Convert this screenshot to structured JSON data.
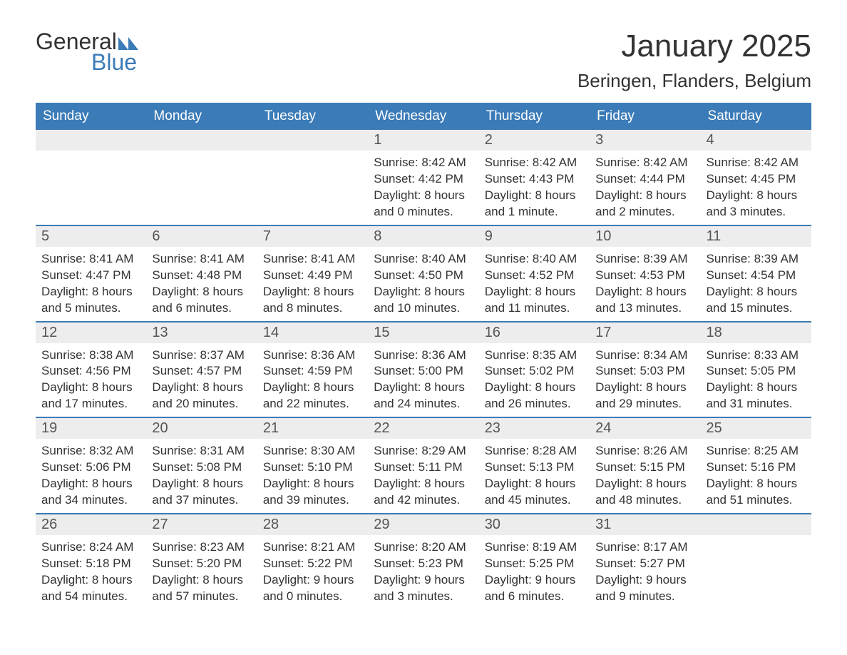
{
  "logo": {
    "general_text": "General",
    "blue_text": "Blue",
    "general_color": "#333333",
    "blue_color": "#3b7bb8",
    "triangle_color": "#3b7bb8"
  },
  "title": {
    "month_year": "January 2025",
    "location": "Beringen, Flanders, Belgium"
  },
  "styling": {
    "header_bg": "#3b7bb8",
    "header_text_color": "#ffffff",
    "day_number_bg": "#ededed",
    "day_number_color": "#555555",
    "border_color": "#3b7bb8",
    "content_color": "#333333",
    "background_color": "#ffffff",
    "body_fontsize": 17,
    "header_fontsize": 19,
    "title_fontsize": 44,
    "location_fontsize": 26
  },
  "day_headers": [
    "Sunday",
    "Monday",
    "Tuesday",
    "Wednesday",
    "Thursday",
    "Friday",
    "Saturday"
  ],
  "weeks": [
    [
      {
        "empty": true
      },
      {
        "empty": true
      },
      {
        "empty": true
      },
      {
        "day": "1",
        "sunrise": "Sunrise: 8:42 AM",
        "sunset": "Sunset: 4:42 PM",
        "daylight1": "Daylight: 8 hours",
        "daylight2": "and 0 minutes."
      },
      {
        "day": "2",
        "sunrise": "Sunrise: 8:42 AM",
        "sunset": "Sunset: 4:43 PM",
        "daylight1": "Daylight: 8 hours",
        "daylight2": "and 1 minute."
      },
      {
        "day": "3",
        "sunrise": "Sunrise: 8:42 AM",
        "sunset": "Sunset: 4:44 PM",
        "daylight1": "Daylight: 8 hours",
        "daylight2": "and 2 minutes."
      },
      {
        "day": "4",
        "sunrise": "Sunrise: 8:42 AM",
        "sunset": "Sunset: 4:45 PM",
        "daylight1": "Daylight: 8 hours",
        "daylight2": "and 3 minutes."
      }
    ],
    [
      {
        "day": "5",
        "sunrise": "Sunrise: 8:41 AM",
        "sunset": "Sunset: 4:47 PM",
        "daylight1": "Daylight: 8 hours",
        "daylight2": "and 5 minutes."
      },
      {
        "day": "6",
        "sunrise": "Sunrise: 8:41 AM",
        "sunset": "Sunset: 4:48 PM",
        "daylight1": "Daylight: 8 hours",
        "daylight2": "and 6 minutes."
      },
      {
        "day": "7",
        "sunrise": "Sunrise: 8:41 AM",
        "sunset": "Sunset: 4:49 PM",
        "daylight1": "Daylight: 8 hours",
        "daylight2": "and 8 minutes."
      },
      {
        "day": "8",
        "sunrise": "Sunrise: 8:40 AM",
        "sunset": "Sunset: 4:50 PM",
        "daylight1": "Daylight: 8 hours",
        "daylight2": "and 10 minutes."
      },
      {
        "day": "9",
        "sunrise": "Sunrise: 8:40 AM",
        "sunset": "Sunset: 4:52 PM",
        "daylight1": "Daylight: 8 hours",
        "daylight2": "and 11 minutes."
      },
      {
        "day": "10",
        "sunrise": "Sunrise: 8:39 AM",
        "sunset": "Sunset: 4:53 PM",
        "daylight1": "Daylight: 8 hours",
        "daylight2": "and 13 minutes."
      },
      {
        "day": "11",
        "sunrise": "Sunrise: 8:39 AM",
        "sunset": "Sunset: 4:54 PM",
        "daylight1": "Daylight: 8 hours",
        "daylight2": "and 15 minutes."
      }
    ],
    [
      {
        "day": "12",
        "sunrise": "Sunrise: 8:38 AM",
        "sunset": "Sunset: 4:56 PM",
        "daylight1": "Daylight: 8 hours",
        "daylight2": "and 17 minutes."
      },
      {
        "day": "13",
        "sunrise": "Sunrise: 8:37 AM",
        "sunset": "Sunset: 4:57 PM",
        "daylight1": "Daylight: 8 hours",
        "daylight2": "and 20 minutes."
      },
      {
        "day": "14",
        "sunrise": "Sunrise: 8:36 AM",
        "sunset": "Sunset: 4:59 PM",
        "daylight1": "Daylight: 8 hours",
        "daylight2": "and 22 minutes."
      },
      {
        "day": "15",
        "sunrise": "Sunrise: 8:36 AM",
        "sunset": "Sunset: 5:00 PM",
        "daylight1": "Daylight: 8 hours",
        "daylight2": "and 24 minutes."
      },
      {
        "day": "16",
        "sunrise": "Sunrise: 8:35 AM",
        "sunset": "Sunset: 5:02 PM",
        "daylight1": "Daylight: 8 hours",
        "daylight2": "and 26 minutes."
      },
      {
        "day": "17",
        "sunrise": "Sunrise: 8:34 AM",
        "sunset": "Sunset: 5:03 PM",
        "daylight1": "Daylight: 8 hours",
        "daylight2": "and 29 minutes."
      },
      {
        "day": "18",
        "sunrise": "Sunrise: 8:33 AM",
        "sunset": "Sunset: 5:05 PM",
        "daylight1": "Daylight: 8 hours",
        "daylight2": "and 31 minutes."
      }
    ],
    [
      {
        "day": "19",
        "sunrise": "Sunrise: 8:32 AM",
        "sunset": "Sunset: 5:06 PM",
        "daylight1": "Daylight: 8 hours",
        "daylight2": "and 34 minutes."
      },
      {
        "day": "20",
        "sunrise": "Sunrise: 8:31 AM",
        "sunset": "Sunset: 5:08 PM",
        "daylight1": "Daylight: 8 hours",
        "daylight2": "and 37 minutes."
      },
      {
        "day": "21",
        "sunrise": "Sunrise: 8:30 AM",
        "sunset": "Sunset: 5:10 PM",
        "daylight1": "Daylight: 8 hours",
        "daylight2": "and 39 minutes."
      },
      {
        "day": "22",
        "sunrise": "Sunrise: 8:29 AM",
        "sunset": "Sunset: 5:11 PM",
        "daylight1": "Daylight: 8 hours",
        "daylight2": "and 42 minutes."
      },
      {
        "day": "23",
        "sunrise": "Sunrise: 8:28 AM",
        "sunset": "Sunset: 5:13 PM",
        "daylight1": "Daylight: 8 hours",
        "daylight2": "and 45 minutes."
      },
      {
        "day": "24",
        "sunrise": "Sunrise: 8:26 AM",
        "sunset": "Sunset: 5:15 PM",
        "daylight1": "Daylight: 8 hours",
        "daylight2": "and 48 minutes."
      },
      {
        "day": "25",
        "sunrise": "Sunrise: 8:25 AM",
        "sunset": "Sunset: 5:16 PM",
        "daylight1": "Daylight: 8 hours",
        "daylight2": "and 51 minutes."
      }
    ],
    [
      {
        "day": "26",
        "sunrise": "Sunrise: 8:24 AM",
        "sunset": "Sunset: 5:18 PM",
        "daylight1": "Daylight: 8 hours",
        "daylight2": "and 54 minutes."
      },
      {
        "day": "27",
        "sunrise": "Sunrise: 8:23 AM",
        "sunset": "Sunset: 5:20 PM",
        "daylight1": "Daylight: 8 hours",
        "daylight2": "and 57 minutes."
      },
      {
        "day": "28",
        "sunrise": "Sunrise: 8:21 AM",
        "sunset": "Sunset: 5:22 PM",
        "daylight1": "Daylight: 9 hours",
        "daylight2": "and 0 minutes."
      },
      {
        "day": "29",
        "sunrise": "Sunrise: 8:20 AM",
        "sunset": "Sunset: 5:23 PM",
        "daylight1": "Daylight: 9 hours",
        "daylight2": "and 3 minutes."
      },
      {
        "day": "30",
        "sunrise": "Sunrise: 8:19 AM",
        "sunset": "Sunset: 5:25 PM",
        "daylight1": "Daylight: 9 hours",
        "daylight2": "and 6 minutes."
      },
      {
        "day": "31",
        "sunrise": "Sunrise: 8:17 AM",
        "sunset": "Sunset: 5:27 PM",
        "daylight1": "Daylight: 9 hours",
        "daylight2": "and 9 minutes."
      },
      {
        "empty": true
      }
    ]
  ]
}
